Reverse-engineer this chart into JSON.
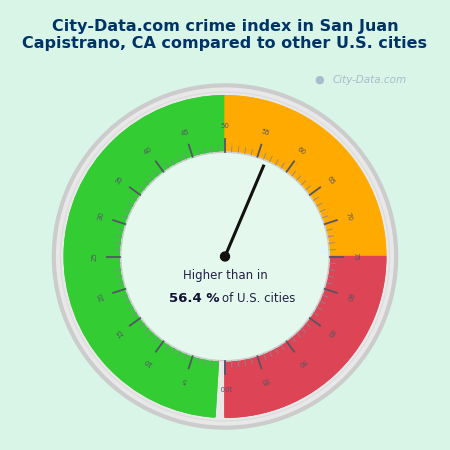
{
  "title": "City-Data.com crime index in San Juan\nCapistrano, CA compared to other U.S. cities",
  "title_fontsize": 11.5,
  "title_bg_color": "#00eeff",
  "title_text_color": "#003366",
  "bg_color": "#d8f5e8",
  "inner_bg_color": "#e4f8ee",
  "center_text_line1": "Higher than in",
  "center_text_line2": "56.4 %",
  "center_text_line3": "of U.S. cities",
  "value": 56.4,
  "min_val": 1,
  "max_val": 100,
  "green_range": [
    1,
    50
  ],
  "orange_range": [
    50,
    75
  ],
  "red_range": [
    75,
    100
  ],
  "green_color": "#33cc33",
  "orange_color": "#ffaa00",
  "red_color": "#dd4455",
  "ring_border_color": "#cccccc",
  "needle_color": "#111111",
  "tick_major_color": "#555566",
  "tick_minor_color": "#888899",
  "label_color": "#555566",
  "watermark_color": "#aabbcc",
  "watermark": "City-Data.com",
  "tick_labels": [
    5,
    10,
    15,
    20,
    25,
    30,
    35,
    40,
    45,
    50,
    55,
    60,
    65,
    70,
    75,
    80,
    85,
    90,
    95,
    100
  ]
}
